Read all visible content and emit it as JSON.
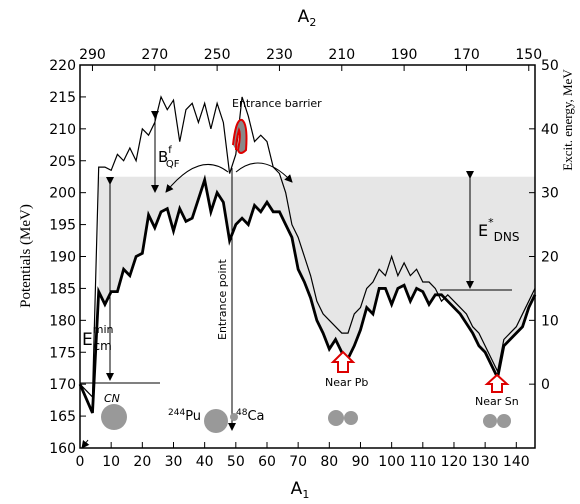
{
  "chart_data": {
    "type": "line",
    "xlabel": "A",
    "xlabel_sub": "1",
    "x2label": "A",
    "x2label_sub": "2",
    "ylabel": "Potentials (MeV)",
    "y2label": "Excit. energy, MeV",
    "x": [
      0,
      4,
      6,
      8,
      10,
      12,
      14,
      16,
      18,
      20,
      22,
      24,
      26,
      28,
      30,
      32,
      34,
      36,
      38,
      40,
      42,
      44,
      46,
      48,
      50,
      52,
      54,
      56,
      58,
      60,
      62,
      64,
      66,
      68,
      70,
      72,
      74,
      76,
      78,
      80,
      82,
      84,
      86,
      88,
      90,
      92,
      94,
      96,
      98,
      100,
      102,
      104,
      106,
      108,
      110,
      112,
      114,
      116,
      118,
      120,
      122,
      124,
      126,
      128,
      130,
      132,
      134,
      136,
      138,
      140,
      142,
      144,
      146
    ],
    "series": [
      {
        "color": "#000000",
        "values": [
          170,
          165.5,
          184.5,
          182.5,
          184.5,
          184.5,
          188,
          187,
          190,
          190.5,
          196.5,
          194.5,
          197,
          197.5,
          194,
          197.5,
          195.5,
          196,
          199,
          202,
          197,
          200,
          198.5,
          192.5,
          195,
          196,
          195,
          198,
          197,
          198.5,
          197,
          197,
          195,
          193,
          188,
          186,
          183.5,
          180,
          178,
          175.5,
          177,
          175,
          174,
          176,
          178.5,
          182,
          181,
          185,
          185,
          182.5,
          185,
          185.5,
          183,
          185,
          184.5,
          182.5,
          184,
          184,
          183,
          182,
          181,
          179.5,
          178,
          176,
          175,
          173,
          171,
          176,
          177,
          178,
          179,
          182,
          184
        ]
      },
      {
        "color": "#000000",
        "values": [
          170,
          168,
          204,
          204,
          203.5,
          206,
          205,
          207,
          205,
          210,
          209,
          211,
          215,
          213,
          214.5,
          208,
          213,
          214,
          211,
          214,
          210,
          214,
          211,
          203,
          206,
          215,
          212,
          208,
          209,
          208,
          204,
          203,
          200,
          195,
          193,
          190,
          187,
          183,
          181,
          180,
          179,
          178,
          178,
          181,
          182,
          185,
          186,
          188,
          187,
          190,
          187,
          189,
          187,
          188,
          186,
          186,
          185,
          183,
          184,
          183,
          182,
          181,
          179,
          178,
          176,
          174,
          172,
          177,
          178,
          179,
          181,
          183,
          185
        ]
      }
    ],
    "entrance_energy": 202.5,
    "xlim": [
      0,
      146
    ],
    "xticks": [
      0,
      10,
      20,
      30,
      40,
      50,
      60,
      70,
      80,
      90,
      100,
      110,
      120,
      130,
      140
    ],
    "x2lim": [
      294,
      148
    ],
    "x2ticks": [
      290,
      270,
      250,
      230,
      210,
      190,
      170,
      150
    ],
    "ylim": [
      160,
      220
    ],
    "yticks": [
      160,
      165,
      170,
      175,
      180,
      185,
      190,
      195,
      200,
      205,
      210,
      215,
      220
    ],
    "y2lim": [
      -10,
      50
    ],
    "y2ticks": [
      0,
      10,
      20,
      30,
      40,
      50
    ],
    "annotations": {
      "entrance_barrier": "Entrance barrier",
      "bqf": "B",
      "bqf_sub": "QF",
      "bqf_sup": "f",
      "edns": "E",
      "edns_sup": "*",
      "edns_sub": "DNS",
      "ecm": "E",
      "ecm_sub": "cm",
      "ecm_sup": "min",
      "entrance_point": "Entrance point",
      "cn": "CN",
      "pu_mass": "244",
      "pu": "Pu",
      "ca_mass": "48",
      "ca": "Ca",
      "near_pb": "Near Pb",
      "near_sn": "Near Sn"
    }
  }
}
